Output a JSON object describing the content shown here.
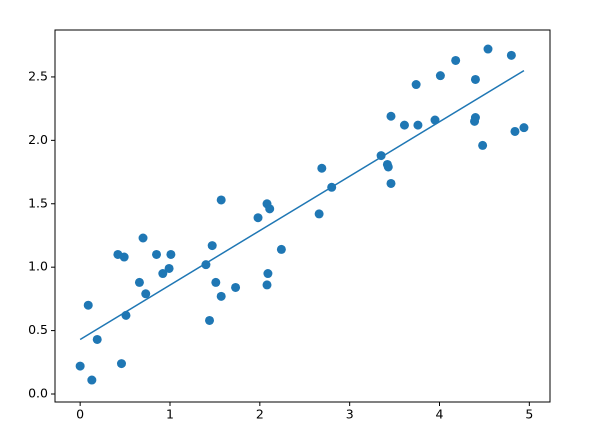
{
  "chart_data": {
    "type": "scatter",
    "x": [
      0.0,
      0.13,
      0.09,
      0.19,
      0.42,
      0.46,
      0.49,
      0.51,
      0.66,
      0.7,
      0.73,
      0.85,
      0.92,
      0.99,
      1.01,
      1.4,
      1.44,
      1.47,
      1.51,
      1.57,
      1.57,
      1.73,
      1.98,
      2.08,
      2.11,
      2.09,
      2.08,
      2.24,
      2.66,
      2.69,
      2.8,
      3.35,
      3.42,
      3.43,
      3.46,
      3.46,
      3.61,
      3.74,
      3.76,
      3.95,
      4.01,
      4.18,
      4.4,
      4.4,
      4.39,
      4.48,
      4.54,
      4.8,
      4.84,
      4.94
    ],
    "values": [
      0.22,
      0.11,
      0.7,
      0.43,
      1.1,
      0.24,
      1.08,
      0.62,
      0.88,
      1.23,
      0.79,
      1.1,
      0.95,
      0.99,
      1.1,
      1.02,
      0.58,
      1.17,
      0.88,
      0.77,
      1.53,
      0.84,
      1.39,
      1.5,
      1.46,
      0.95,
      0.86,
      1.14,
      1.42,
      1.78,
      1.63,
      1.88,
      1.81,
      1.79,
      1.66,
      2.19,
      2.12,
      2.44,
      2.12,
      2.16,
      2.51,
      2.63,
      2.48,
      2.18,
      2.15,
      1.96,
      2.72,
      2.67,
      2.07,
      2.1
    ],
    "color": "#1f77b4",
    "fit": {
      "x": [
        0.0,
        4.94
      ],
      "values": [
        0.43,
        2.55
      ],
      "color": "#1f77b4"
    },
    "xlim": [
      -0.28,
      5.23
    ],
    "ylim": [
      -0.063,
      2.87
    ],
    "xticks": [
      0,
      1,
      2,
      3,
      4,
      5
    ],
    "yticks": [
      {
        "value": 0,
        "label": "0.0"
      },
      {
        "value": 0.5,
        "label": "0.5"
      },
      {
        "value": 1,
        "label": "1.0"
      },
      {
        "value": 1.5,
        "label": "1.5"
      },
      {
        "value": 2,
        "label": "2.0"
      },
      {
        "value": 2.5,
        "label": "2.5"
      }
    ],
    "grid": false
  }
}
